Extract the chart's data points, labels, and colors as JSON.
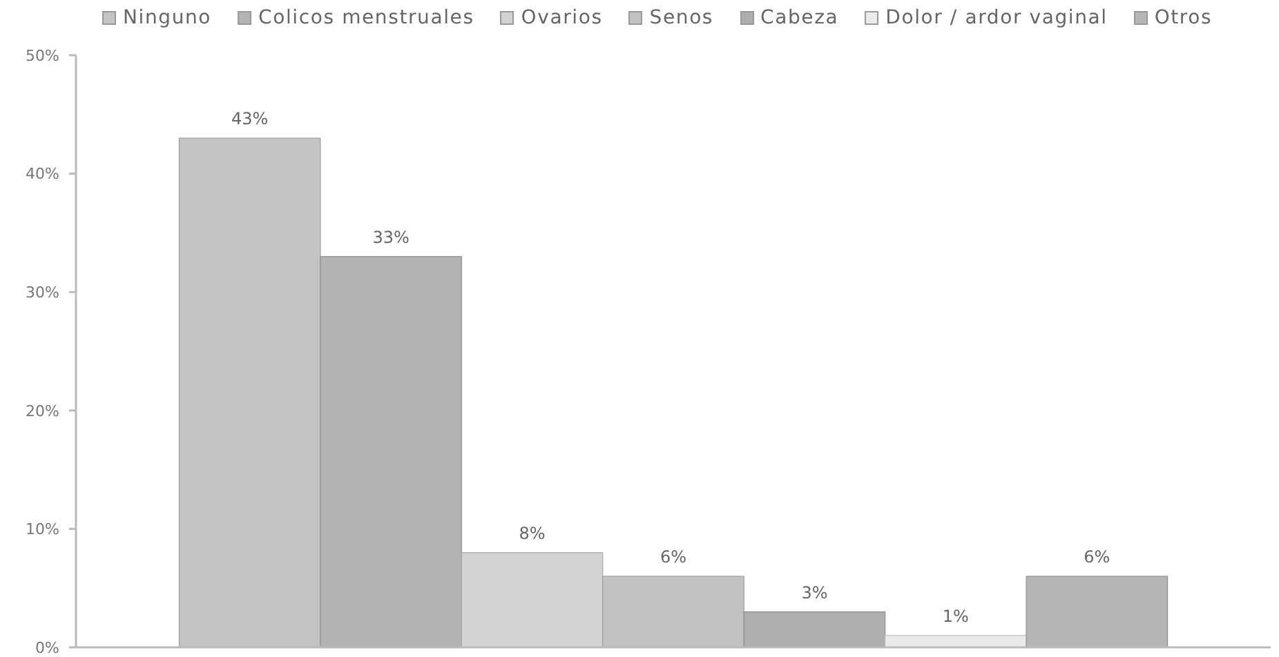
{
  "chart_data": {
    "type": "bar",
    "categories": [
      null
    ],
    "series": [
      {
        "name": "Ninguno",
        "color": "#c4c4c4",
        "values": [
          43
        ],
        "value_labels": [
          "43%"
        ]
      },
      {
        "name": "Colicos menstruales",
        "color": "#b3b3b3",
        "values": [
          33
        ],
        "value_labels": [
          "33%"
        ]
      },
      {
        "name": "Ovarios",
        "color": "#d2d2d2",
        "values": [
          8
        ],
        "value_labels": [
          "8%"
        ]
      },
      {
        "name": "Senos",
        "color": "#c2c2c2",
        "values": [
          6
        ],
        "value_labels": [
          "6%"
        ]
      },
      {
        "name": "Cabeza",
        "color": "#aeaeae",
        "values": [
          3
        ],
        "value_labels": [
          "3%"
        ]
      },
      {
        "name": "Dolor / ardor vaginal",
        "color": "#ebebeb",
        "values": [
          1
        ],
        "value_labels": [
          "1%"
        ]
      },
      {
        "name": "Otros",
        "color": "#b5b5b5",
        "values": [
          6
        ],
        "value_labels": [
          "6%"
        ]
      }
    ],
    "ylim": [
      0,
      50
    ],
    "yticks": [
      {
        "value": 0,
        "label": "0%"
      },
      {
        "value": 10,
        "label": "10%"
      },
      {
        "value": 20,
        "label": "20%"
      },
      {
        "value": 30,
        "label": "30%"
      },
      {
        "value": 40,
        "label": "40%"
      },
      {
        "value": 50,
        "label": "50%"
      }
    ],
    "grid": false,
    "legend": "top"
  }
}
